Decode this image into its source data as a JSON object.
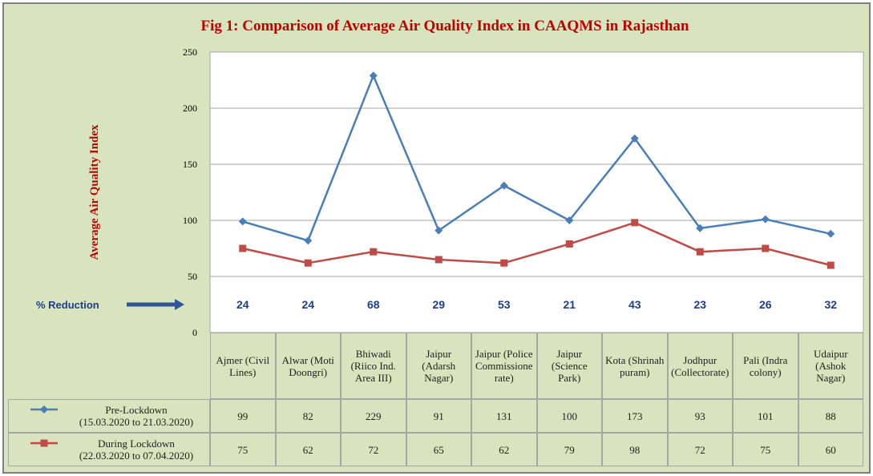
{
  "chart_data": {
    "type": "line",
    "title": "Fig 1: Comparison of Average Air Quality Index in CAAQMS in Rajasthan",
    "y_label": "Average Air Quality Index",
    "categories": [
      "Ajmer (Civil Lines)",
      "Alwar (Moti Doongri)",
      "Bhiwadi (Riico Ind. Area III)",
      "Jaipur (Adarsh Nagar)",
      "Jaipur (Police Commissionerate)",
      "Jaipur (Science Park)",
      "Kota (Shrinah puram)",
      "Jodhpur (Collectorate)",
      "Pali (Indra colony)",
      "Udaipur (Ashok Nagar)"
    ],
    "series": [
      {
        "name": "Pre-Lockdown",
        "period": "(15.03.2020 to 21.03.2020)",
        "color": "#4a7ebb",
        "marker": "diamond",
        "values": [
          99,
          82,
          229,
          91,
          131,
          100,
          173,
          93,
          101,
          88
        ]
      },
      {
        "name": "During Lockdown",
        "period": "(22.03.2020 to 07.04.2020)",
        "color": "#be4b48",
        "marker": "square",
        "values": [
          75,
          62,
          72,
          65,
          62,
          79,
          98,
          72,
          75,
          60
        ]
      }
    ],
    "reduction": {
      "label": "% Reduction",
      "values": [
        24,
        24,
        68,
        29,
        53,
        21,
        43,
        23,
        26,
        32
      ]
    },
    "ylim": [
      0,
      250
    ],
    "yticks": [
      0,
      50,
      100,
      150,
      200,
      250
    ],
    "grid": true
  }
}
